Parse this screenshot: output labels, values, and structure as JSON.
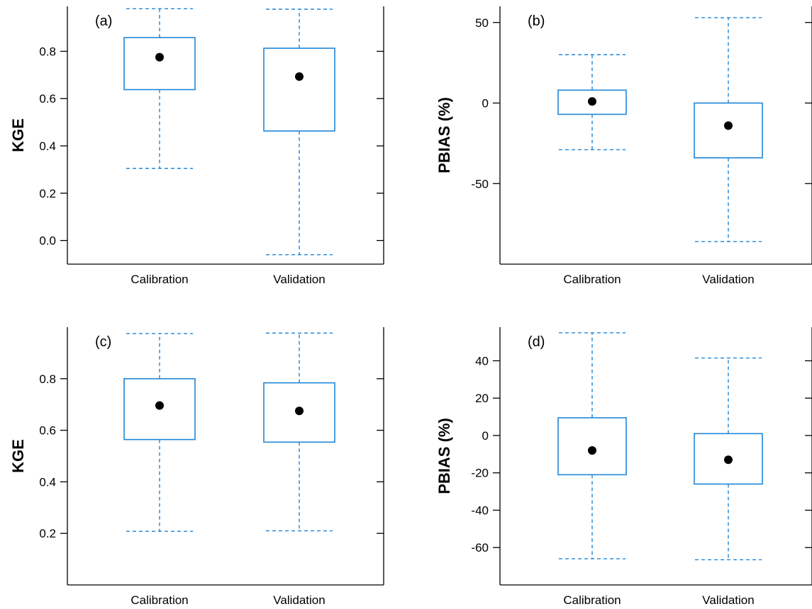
{
  "chart_data": [
    {
      "type": "box",
      "panel_label": "(a)",
      "ylabel": "KGE",
      "categories": [
        "Calibration",
        "Validation"
      ],
      "ylim": [
        -0.1,
        0.99
      ],
      "yticks": [
        0.0,
        0.2,
        0.4,
        0.6,
        0.8
      ],
      "ytick_labels": [
        "0.0",
        "0.2",
        "0.4",
        "0.6",
        "0.8"
      ],
      "boxes": [
        {
          "whisker_low": 0.305,
          "q1": 0.638,
          "mean": 0.775,
          "q3": 0.858,
          "whisker_high": 0.98
        },
        {
          "whisker_low": -0.06,
          "q1": 0.463,
          "mean": 0.693,
          "q3": 0.813,
          "whisker_high": 0.978
        }
      ]
    },
    {
      "type": "box",
      "panel_label": "(b)",
      "ylabel": "PBIAS (%)",
      "categories": [
        "Calibration",
        "Validation"
      ],
      "ylim": [
        -100,
        60
      ],
      "yticks": [
        -50,
        0,
        50
      ],
      "ytick_labels": [
        "-50",
        "0",
        "50"
      ],
      "boxes": [
        {
          "whisker_low": -29,
          "q1": -7,
          "mean": 1,
          "q3": 8,
          "whisker_high": 30
        },
        {
          "whisker_low": -86,
          "q1": -34,
          "mean": -14,
          "q3": 0,
          "whisker_high": 53
        }
      ]
    },
    {
      "type": "box",
      "panel_label": "(c)",
      "ylabel": "KGE",
      "categories": [
        "Calibration",
        "Validation"
      ],
      "ylim": [
        0.0,
        1.0
      ],
      "yticks": [
        0.2,
        0.4,
        0.6,
        0.8
      ],
      "ytick_labels": [
        "0.2",
        "0.4",
        "0.6",
        "0.8"
      ],
      "boxes": [
        {
          "whisker_low": 0.208,
          "q1": 0.564,
          "mean": 0.696,
          "q3": 0.8,
          "whisker_high": 0.975
        },
        {
          "whisker_low": 0.21,
          "q1": 0.554,
          "mean": 0.675,
          "q3": 0.784,
          "whisker_high": 0.977
        }
      ]
    },
    {
      "type": "box",
      "panel_label": "(d)",
      "ylabel": "PBIAS (%)",
      "categories": [
        "Calibration",
        "Validation"
      ],
      "ylim": [
        -80,
        58
      ],
      "yticks": [
        -60,
        -40,
        -20,
        0,
        20,
        40
      ],
      "ytick_labels": [
        "-60",
        "-40",
        "-20",
        "0",
        "20",
        "40"
      ],
      "boxes": [
        {
          "whisker_low": -66,
          "q1": -21,
          "mean": -8,
          "q3": 9.5,
          "whisker_high": 55
        },
        {
          "whisker_low": -66.5,
          "q1": -26,
          "mean": -13,
          "q3": 1,
          "whisker_high": 41.5
        }
      ]
    }
  ],
  "colors": {
    "box": "#1f86d8",
    "mean_dot": "#000000",
    "axis": "#000000"
  }
}
